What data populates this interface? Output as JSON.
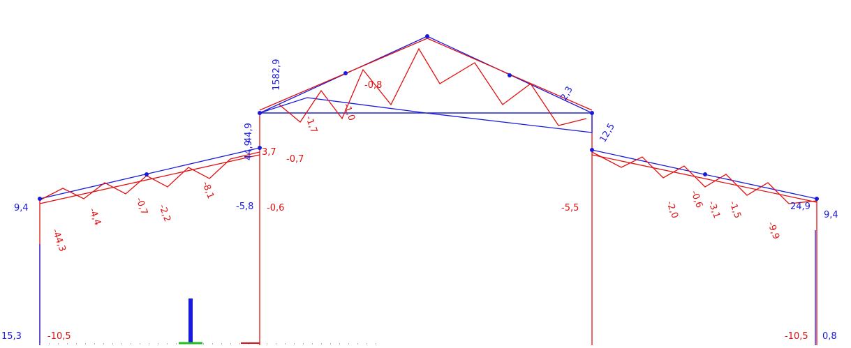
{
  "labels": [
    "9,4",
    "15,3",
    "-10,5",
    "-5,8",
    "-0,6",
    "-5,5",
    "-10,5",
    "0,8",
    "9,4",
    "1582,9",
    "44,9",
    "24,9",
    "3,7",
    "-0,7",
    "-44,3",
    "-2,2",
    "-0,7",
    "-4,4",
    "-8,1",
    "-1,0",
    "-0,8",
    "-1,7",
    "-0,6",
    "-1,5",
    "-3,1",
    "-9,9",
    "2,3",
    "12,5",
    "44,9",
    "-2,0"
  ]
}
